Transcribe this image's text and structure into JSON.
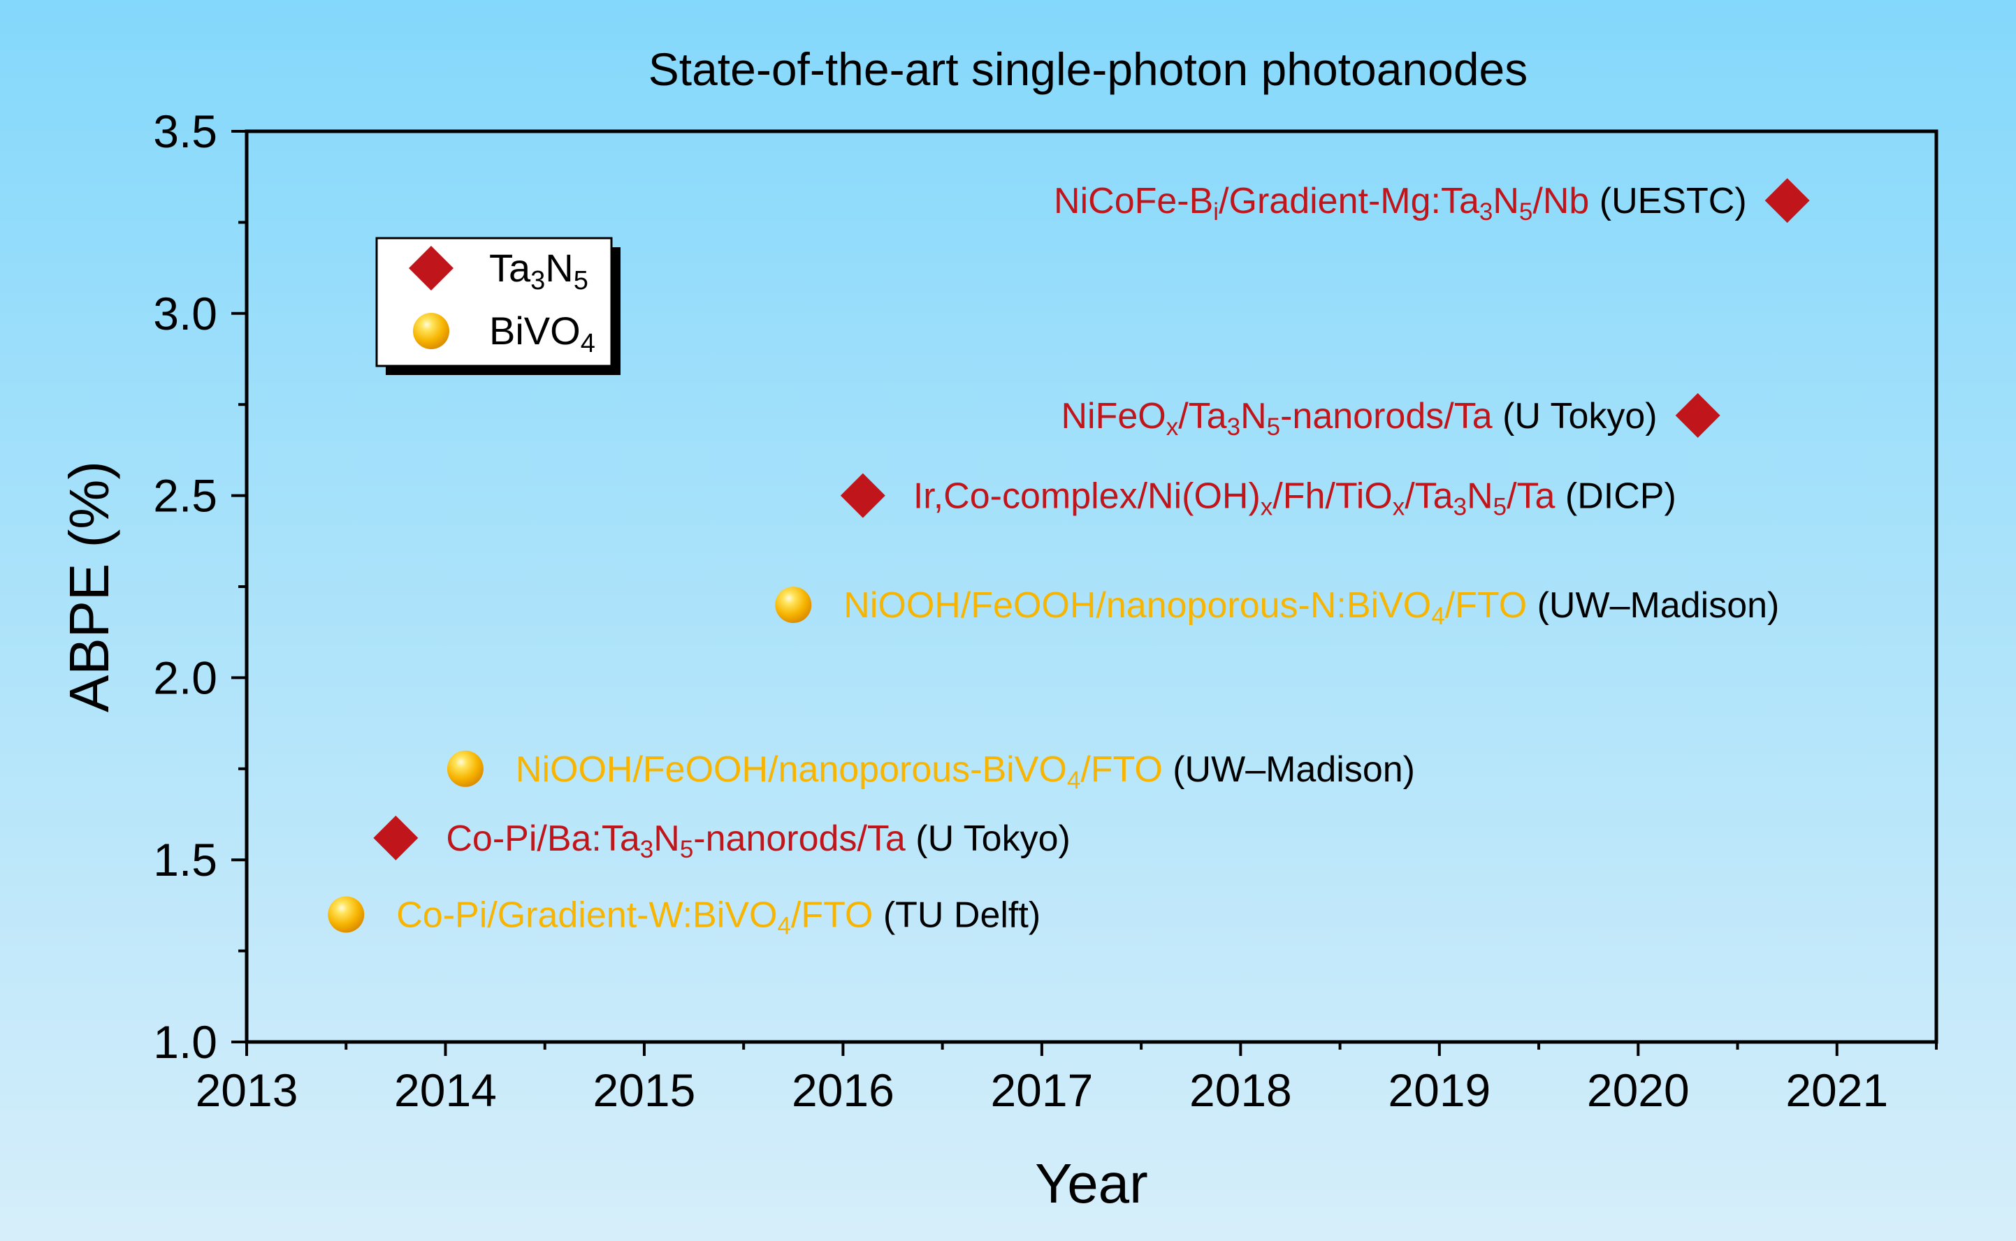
{
  "chart_data": {
    "type": "scatter",
    "title": "State-of-the-art single-photon photoanodes",
    "xlabel": "Year",
    "ylabel": "ABPE (%)",
    "xlim": [
      2013,
      2021.5
    ],
    "ylim": [
      1.0,
      3.5
    ],
    "xticks": [
      "2013",
      "2014",
      "2015",
      "2016",
      "2017",
      "2018",
      "2019",
      "2020",
      "2021"
    ],
    "yticks": [
      "1.0",
      "1.5",
      "2.0",
      "2.5",
      "3.0",
      "3.5"
    ],
    "grid": false,
    "legend_position": "top-left",
    "colors": {
      "Ta3N5": "#C0161B",
      "BiVO4": "#F7B400",
      "institution": "#000000"
    },
    "series": [
      {
        "name": "Ta3N5",
        "legend_label": [
          {
            "t": "Ta"
          },
          {
            "t": "3",
            "sub": true
          },
          {
            "t": "N"
          },
          {
            "t": "5",
            "sub": true
          }
        ],
        "marker": "diamond",
        "points": [
          {
            "x": 2013.75,
            "y": 1.56,
            "label": [
              {
                "t": "Co-Pi/Ba:Ta"
              },
              {
                "t": "3",
                "sub": true
              },
              {
                "t": "N"
              },
              {
                "t": "5",
                "sub": true
              },
              {
                "t": "-nanorods/Ta"
              }
            ],
            "institution": "(U Tokyo)",
            "label_side": "right"
          },
          {
            "x": 2016.1,
            "y": 2.5,
            "label": [
              {
                "t": "Ir,Co-complex/Ni(OH)"
              },
              {
                "t": "x",
                "sub": true
              },
              {
                "t": "/Fh/TiO"
              },
              {
                "t": "x",
                "sub": true
              },
              {
                "t": "/Ta"
              },
              {
                "t": "3",
                "sub": true
              },
              {
                "t": "N"
              },
              {
                "t": "5",
                "sub": true
              },
              {
                "t": "/Ta"
              }
            ],
            "institution": "(DICP)",
            "label_side": "right"
          },
          {
            "x": 2020.3,
            "y": 2.72,
            "label": [
              {
                "t": "NiFeO"
              },
              {
                "t": "x",
                "sub": true
              },
              {
                "t": "/Ta"
              },
              {
                "t": "3",
                "sub": true
              },
              {
                "t": "N"
              },
              {
                "t": "5",
                "sub": true
              },
              {
                "t": "-nanorods/Ta"
              }
            ],
            "institution": "(U Tokyo)",
            "label_side": "left"
          },
          {
            "x": 2020.75,
            "y": 3.31,
            "label": [
              {
                "t": "NiCoFe-B"
              },
              {
                "t": "i",
                "sub": true
              },
              {
                "t": "/Gradient-Mg:Ta"
              },
              {
                "t": "3",
                "sub": true
              },
              {
                "t": "N"
              },
              {
                "t": "5",
                "sub": true
              },
              {
                "t": "/Nb"
              }
            ],
            "institution": "(UESTC)",
            "label_side": "left"
          }
        ]
      },
      {
        "name": "BiVO4",
        "legend_label": [
          {
            "t": "BiVO"
          },
          {
            "t": "4",
            "sub": true
          }
        ],
        "marker": "sphere",
        "points": [
          {
            "x": 2013.5,
            "y": 1.35,
            "label": [
              {
                "t": "Co-Pi/Gradient-W:BiVO"
              },
              {
                "t": "4",
                "sub": true
              },
              {
                "t": "/FTO"
              }
            ],
            "institution": "(TU Delft)",
            "label_side": "right"
          },
          {
            "x": 2014.1,
            "y": 1.75,
            "label": [
              {
                "t": "NiOOH/FeOOH/nanoporous-BiVO"
              },
              {
                "t": "4",
                "sub": true
              },
              {
                "t": "/FTO"
              }
            ],
            "institution": "(UW–Madison)",
            "label_side": "right"
          },
          {
            "x": 2015.75,
            "y": 2.2,
            "label": [
              {
                "t": "NiOOH/FeOOH/nanoporous-N:BiVO"
              },
              {
                "t": "4",
                "sub": true
              },
              {
                "t": "/FTO"
              }
            ],
            "institution": "(UW–Madison)",
            "label_side": "right"
          }
        ]
      }
    ]
  }
}
